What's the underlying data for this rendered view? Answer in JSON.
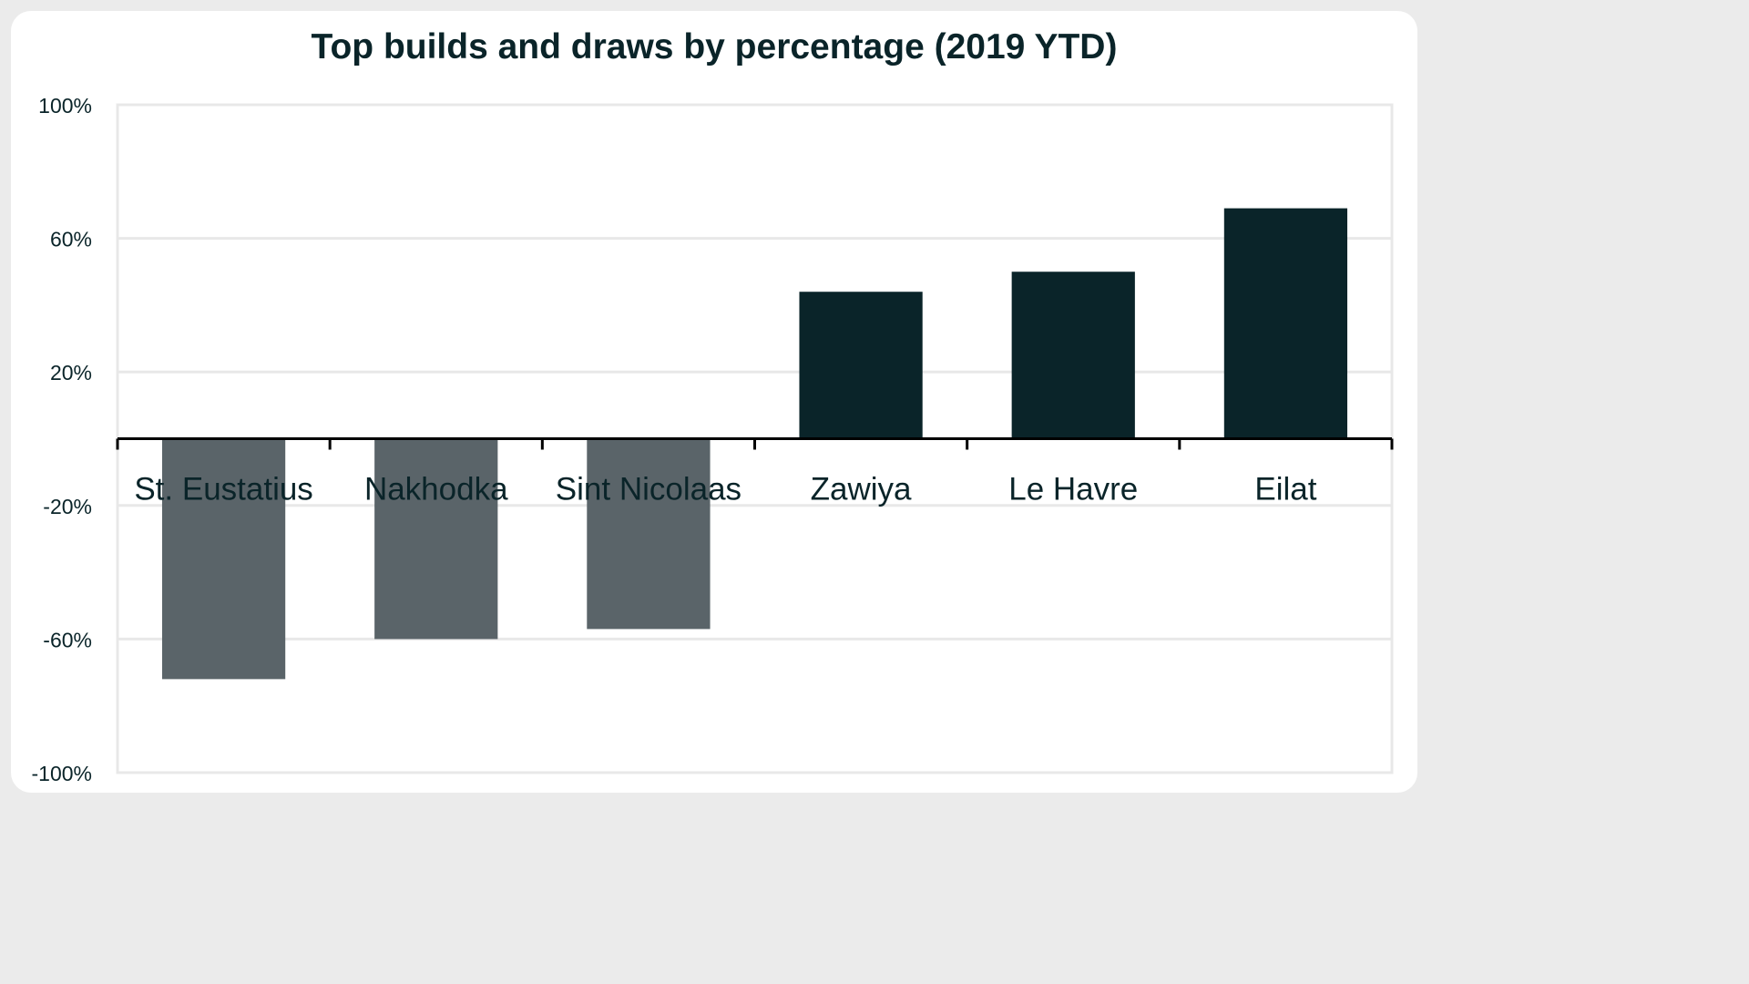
{
  "chart_data": {
    "type": "bar",
    "title": "Top builds and draws by percentage (2019 YTD)",
    "categories": [
      "St. Eustatius",
      "Nakhodka",
      "Sint Nicolaas",
      "Zawiya",
      "Le Havre",
      "Eilat"
    ],
    "values": [
      -72,
      -60,
      -57,
      44,
      50,
      69
    ],
    "ylim": [
      -100,
      100
    ],
    "yticks": [
      100,
      60,
      20,
      -20,
      -60,
      -100
    ],
    "ytick_labels": [
      "100%",
      "60%",
      "20%",
      "-20%",
      "-60%",
      "-100%"
    ],
    "xlabel": "",
    "ylabel": "",
    "grid": true,
    "legend": "none",
    "colors": {
      "positive": "#0a2429",
      "negative": "#5a6469",
      "grid": "#e8e8e8",
      "text": "#0a2429",
      "axis": "#000000"
    }
  }
}
